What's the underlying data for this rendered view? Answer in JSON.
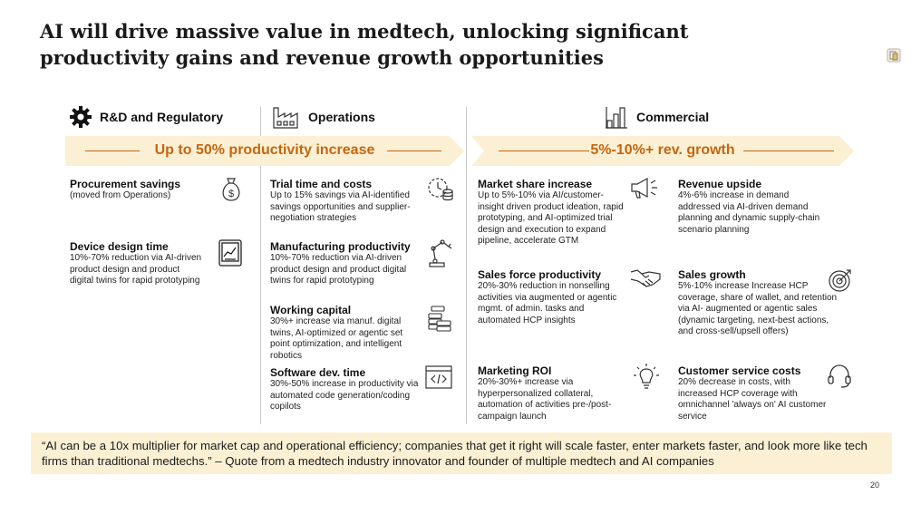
{
  "title": {
    "line1": "AI will drive massive value in medtech, unlocking significant",
    "line2": "productivity gains and revenue growth opportunities"
  },
  "sections": {
    "rnd": {
      "label": "R&D and Regulatory",
      "icon": "gear-icon"
    },
    "operations": {
      "label": "Operations",
      "icon": "factory-icon"
    },
    "commercial": {
      "label": "Commercial",
      "icon": "bar-chart-icon"
    }
  },
  "banners": {
    "productivity": "Up to 50% productivity increase",
    "growth": "5%-10%+ rev. growth"
  },
  "colors": {
    "accent": "#c5660f",
    "banner_bg": "#fbf0d4",
    "quote_bg": "#fbf0d4"
  },
  "items": {
    "procurement": {
      "title": "Procurement savings",
      "desc": "(moved from Operations)",
      "icon": "money-bag-icon"
    },
    "device_design": {
      "title": "Device design time",
      "desc": "10%-70% reduction via AI-driven product design and product digital twins for rapid prototyping",
      "icon": "tablet-chart-icon"
    },
    "trial_time": {
      "title": "Trial time and costs",
      "desc": "Up to 15% savings via AI-identified savings opportunities and supplier-negotiation strategies",
      "icon": "clock-coins-icon"
    },
    "manufacturing": {
      "title": "Manufacturing productivity",
      "desc": "10%-70% reduction via AI-driven product design and product digital twins for rapid prototyping",
      "icon": "robot-arm-icon"
    },
    "working_capital": {
      "title": "Working capital",
      "desc": "30%+ increase via manuf. digital twins, AI-optimized or agentic set point optimization, and intelligent robotics",
      "icon": "coin-stack-icon"
    },
    "software": {
      "title": "Software dev. time",
      "desc": "30%-50% increase in productivity via automated code generation/coding copilots",
      "icon": "code-window-icon"
    },
    "market_share": {
      "title": "Market share increase",
      "desc": "Up to 5%-10% via AI/customer-insight driven product ideation, rapid prototyping, and AI-optimized trial design and execution to expand pipeline, accelerate GTM",
      "icon": "megaphone-icon"
    },
    "sales_force": {
      "title": "Sales force productivity",
      "desc": "20%-30% reduction in nonselling activities via augmented or agentic mgmt. of admin. tasks and automated HCP insights",
      "icon": "handshake-icon"
    },
    "marketing_roi": {
      "title": "Marketing ROI",
      "desc": "20%-30%+ increase via hyperpersonalized collateral, automation of activities pre-/post-campaign launch",
      "icon": "lightbulb-icon"
    },
    "revenue_upside": {
      "title": "Revenue upside",
      "desc": "4%-6% increase in demand addressed via AI-driven demand planning and dynamic supply-chain scenario planning",
      "icon": ""
    },
    "sales_growth": {
      "title": "Sales growth",
      "desc": "5%-10% increase Increase HCP coverage, share of wallet, and retention via AI- augmented or agentic sales (dynamic targeting, next-best actions, and cross-sell/upsell offers)",
      "icon": "target-icon"
    },
    "customer_service": {
      "title": "Customer service costs",
      "desc": "20% decrease in costs, with increased HCP coverage with omnichannel 'always on' AI customer service",
      "icon": "headset-icon"
    }
  },
  "quote": "“AI can be a 10x multiplier for market cap and operational efficiency; companies that get it right will scale faster, enter markets faster, and look more like tech firms than traditional medtechs.” – Quote from a medtech industry innovator and founder of multiple medtech and AI companies",
  "page_number": "20"
}
